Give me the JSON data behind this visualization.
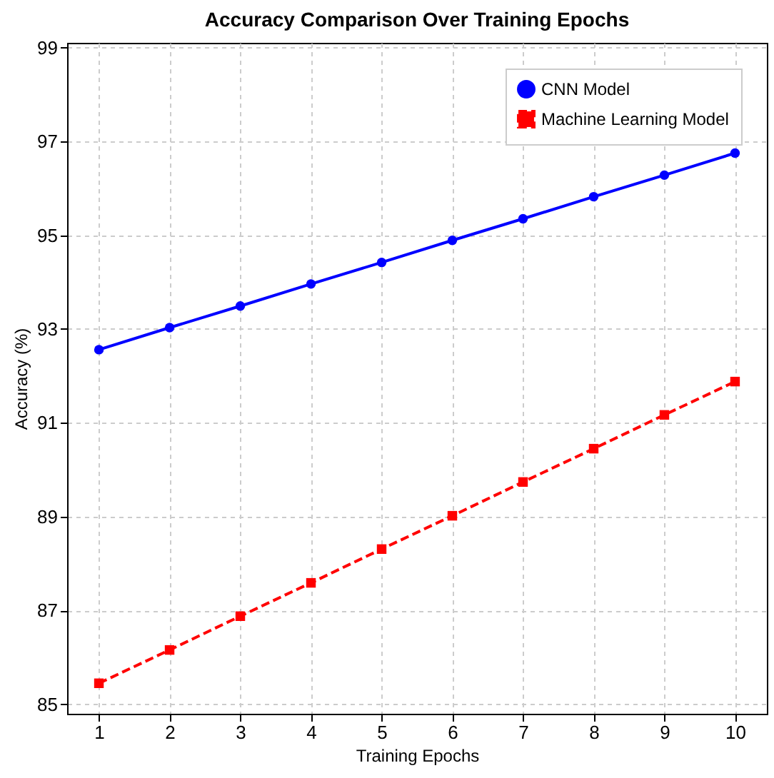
{
  "chart_data": {
    "type": "line",
    "title": "Accuracy Comparison Over Training Epochs",
    "xlabel": "Training Epochs",
    "ylabel": "Accuracy (%)",
    "x": [
      1,
      2,
      3,
      4,
      5,
      6,
      7,
      8,
      9,
      10
    ],
    "series": [
      {
        "name": "CNN Model",
        "color": "#0000ff",
        "marker": "circle",
        "line_style": "solid",
        "values": [
          92.56,
          93.03,
          93.49,
          93.96,
          94.42,
          94.89,
          95.35,
          95.82,
          96.28,
          96.75
        ]
      },
      {
        "name": "Machine Learning Model",
        "color": "#ff0000",
        "marker": "square",
        "line_style": "dashed",
        "values": [
          85.45,
          86.16,
          86.88,
          87.59,
          88.31,
          89.02,
          89.74,
          90.45,
          91.17,
          91.88
        ]
      }
    ],
    "xlim": [
      0.55,
      10.45
    ],
    "xticks": [
      1,
      2,
      3,
      4,
      5,
      6,
      7,
      8,
      9,
      10
    ],
    "ylim": [
      84.8,
      99.1
    ],
    "yticks": [
      85,
      87,
      89,
      91,
      93,
      95,
      97,
      99
    ],
    "grid": true,
    "legend": "top right"
  }
}
